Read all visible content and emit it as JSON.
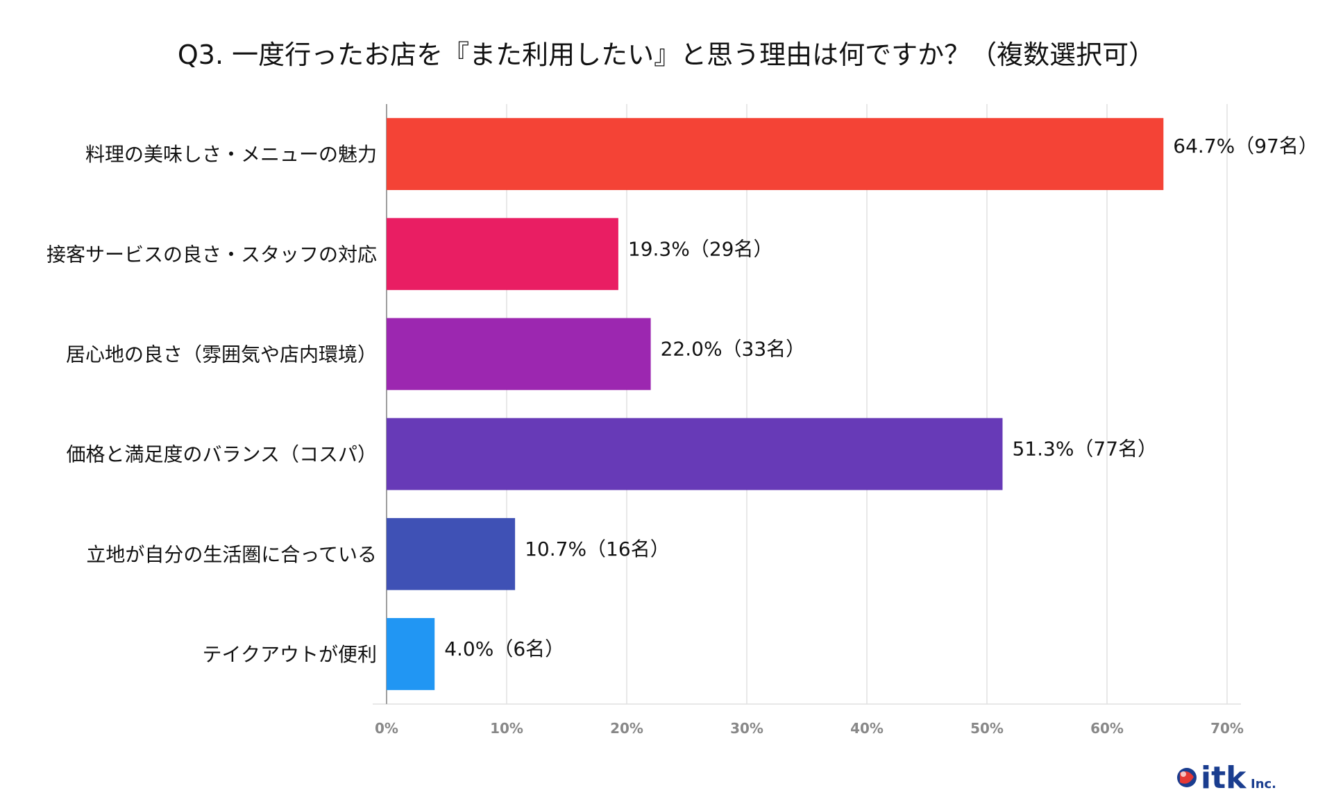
{
  "chart_data": {
    "type": "bar",
    "orientation": "horizontal",
    "title": "Q3. 一度行ったお店を『また利用したい』と思う理由は何ですか？（複数選択可）",
    "categories": [
      "料理の美味しさ・メニューの魅力",
      "接客サービスの良さ・スタッフの対応",
      "居心地の良さ（雰囲気や店内環境）",
      "価格と満足度のバランス（コスパ）",
      "立地が自分の生活圏に合っている",
      "テイクアウトが便利"
    ],
    "values": [
      64.7,
      19.3,
      22.0,
      51.3,
      10.7,
      4.0
    ],
    "value_labels": [
      "64.7%（97名）",
      "19.3%（29名）",
      "22.0%（33名）",
      "51.3%（77名）",
      "10.7%（16名）",
      "4.0%（6名）"
    ],
    "colors": [
      "#f44336",
      "#e91e63",
      "#9c27b0",
      "#673ab7",
      "#3f51b5",
      "#2196f3"
    ],
    "xlim": [
      0,
      70
    ],
    "x_ticks": [
      0,
      10,
      20,
      30,
      40,
      50,
      60,
      70
    ],
    "x_tick_labels": [
      "0%",
      "10%",
      "20%",
      "30%",
      "40%",
      "50%",
      "60%",
      "70%"
    ],
    "grid": true,
    "xlabel": "",
    "ylabel": ""
  },
  "logo": {
    "name": "itk",
    "suffix": "Inc."
  }
}
